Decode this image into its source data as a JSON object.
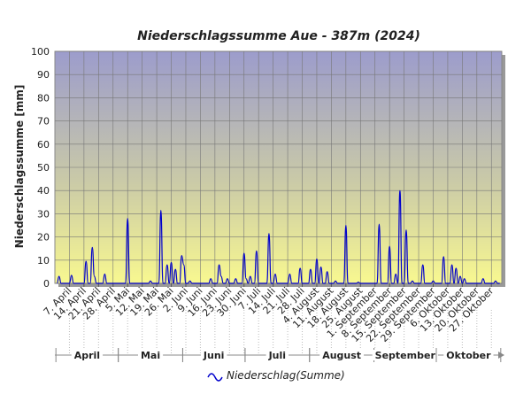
{
  "chart_data": {
    "type": "line",
    "title": "Niederschlagssumme Aue - 387m (2024)",
    "y_label": "Niederschlagssumme [mm]",
    "categories": [
      null,
      null,
      null,
      null,
      null,
      null,
      "7. April",
      null,
      null,
      null,
      null,
      null,
      null,
      "14. April",
      null,
      null,
      null,
      null,
      null,
      null,
      "21. April",
      null,
      null,
      null,
      null,
      null,
      null,
      "28. April",
      null,
      null,
      null,
      null,
      null,
      null,
      "5. Mai",
      null,
      null,
      null,
      null,
      null,
      null,
      "12. Mai",
      null,
      null,
      null,
      null,
      null,
      null,
      "19. Mai",
      null,
      null,
      null,
      null,
      null,
      null,
      "26. Mai",
      null,
      null,
      null,
      null,
      null,
      null,
      "2. Juni",
      null,
      null,
      null,
      null,
      null,
      null,
      "9. Juni",
      null,
      null,
      null,
      null,
      null,
      null,
      "16. Juni",
      null,
      null,
      null,
      null,
      null,
      null,
      "23. Juni",
      null,
      null,
      null,
      null,
      null,
      null,
      "30. Juni",
      null,
      null,
      null,
      null,
      null,
      null,
      "7. Juli",
      null,
      null,
      null,
      null,
      null,
      null,
      "14. Juli",
      null,
      null,
      null,
      null,
      null,
      null,
      "21. Juli",
      null,
      null,
      null,
      null,
      null,
      null,
      "28. Juli",
      null,
      null,
      null,
      null,
      null,
      null,
      "4. August",
      null,
      null,
      null,
      null,
      null,
      null,
      "11. August",
      null,
      null,
      null,
      null,
      null,
      null,
      "18. August",
      null,
      null,
      null,
      null,
      null,
      null,
      "25. August",
      null,
      null,
      null,
      null,
      null,
      null,
      "1. September",
      null,
      null,
      null,
      null,
      null,
      null,
      "8. September",
      null,
      null,
      null,
      null,
      null,
      null,
      "15. September",
      null,
      null,
      null,
      null,
      null,
      null,
      "22. September",
      null,
      null,
      null,
      null,
      null,
      null,
      "29. September",
      null,
      null,
      null,
      null,
      null,
      null,
      "6. Oktober",
      null,
      null,
      null,
      null,
      null,
      null,
      "13. Oktober",
      null,
      null,
      null,
      null,
      null,
      null,
      "20. Oktober",
      null,
      null,
      null,
      null,
      null,
      null,
      "27. Oktober",
      null,
      null,
      null,
      null
    ],
    "months": [
      "April",
      "Mai",
      "Juni",
      "Juli",
      "August",
      "September",
      "Oktober"
    ],
    "series": [
      {
        "name": "Niederschlag(Summe)",
        "color": "#0000cc",
        "values": [
          0,
          3,
          0,
          0,
          0,
          0,
          0,
          3.5,
          0,
          0,
          0,
          0,
          0,
          0,
          9.5,
          0,
          0,
          15.5,
          3,
          0,
          0,
          0,
          0,
          4,
          0,
          0,
          0,
          0,
          0,
          0,
          0,
          0,
          0,
          0,
          28,
          0,
          0,
          0,
          0,
          0,
          0,
          0,
          0,
          0,
          0,
          1,
          0,
          0,
          0,
          0,
          31.5,
          0,
          0,
          8,
          0,
          9,
          0,
          6,
          0,
          0,
          12,
          8,
          0,
          0,
          1,
          0,
          0,
          0,
          0,
          0,
          0,
          0,
          0,
          0,
          2,
          0,
          0,
          0,
          8,
          3,
          0,
          0,
          2,
          0,
          0,
          0,
          2,
          0,
          0,
          0,
          13,
          2,
          0,
          3,
          0,
          0,
          14,
          0,
          0,
          0,
          0,
          0,
          21.5,
          0,
          0,
          4,
          0,
          0,
          0,
          0,
          0,
          0,
          4,
          0,
          0,
          0,
          0,
          6.5,
          0,
          0,
          0,
          0,
          6,
          0,
          0,
          10.5,
          0,
          7,
          0,
          0,
          5,
          0,
          0,
          0,
          1,
          0,
          0,
          0,
          0,
          25,
          0,
          0,
          0,
          0,
          0,
          0.5,
          0,
          0,
          0,
          0,
          0,
          0,
          0,
          0,
          0,
          25.5,
          0,
          0,
          0,
          0,
          16,
          0,
          0,
          4,
          0,
          40,
          0,
          0,
          23,
          0,
          0,
          1,
          0,
          0,
          0,
          0,
          8,
          0,
          0,
          0,
          0,
          1,
          0,
          0,
          0,
          0,
          11.5,
          0,
          0,
          0,
          8,
          0,
          6.5,
          0,
          3,
          0,
          2,
          0,
          0,
          0,
          0,
          0,
          0,
          0,
          0,
          2,
          0,
          0,
          0,
          0,
          0,
          1,
          0,
          0
        ]
      }
    ],
    "ylim": [
      0,
      100
    ],
    "yticks": [
      0,
      10,
      20,
      30,
      40,
      50,
      60,
      70,
      80,
      90,
      100
    ],
    "grid": true
  }
}
